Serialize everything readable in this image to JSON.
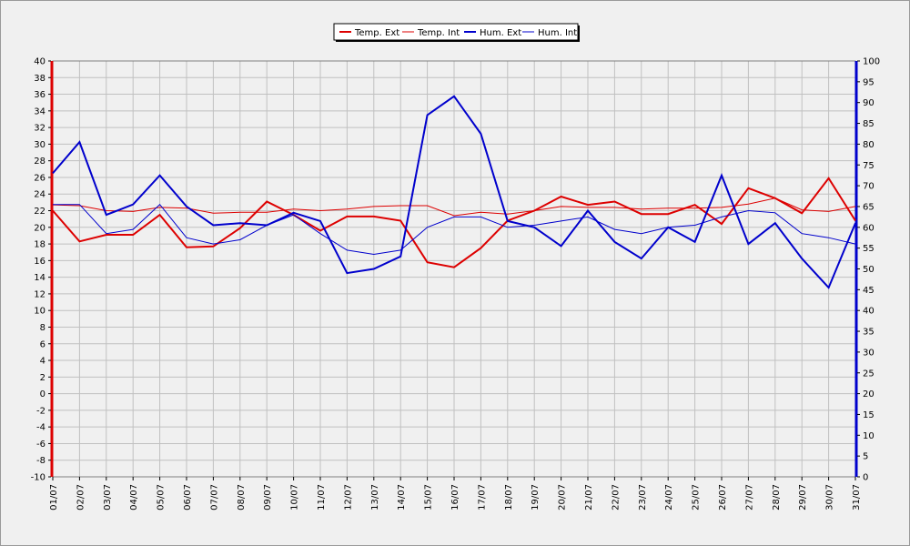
{
  "chart_data": {
    "type": "line",
    "title": "",
    "categories": [
      "01/07",
      "02/07",
      "03/07",
      "04/07",
      "05/07",
      "06/07",
      "07/07",
      "08/07",
      "09/07",
      "10/07",
      "11/07",
      "12/07",
      "13/07",
      "14/07",
      "15/07",
      "16/07",
      "17/07",
      "18/07",
      "19/07",
      "20/07",
      "21/07",
      "22/07",
      "23/07",
      "24/07",
      "25/07",
      "26/07",
      "27/07",
      "28/07",
      "29/07",
      "30/07",
      "31/07"
    ],
    "left_axis": {
      "ylim": [
        -10,
        40
      ],
      "ticks": [
        -10,
        -8,
        -6,
        -4,
        -2,
        0,
        2,
        4,
        6,
        8,
        10,
        12,
        14,
        16,
        18,
        20,
        22,
        24,
        26,
        28,
        30,
        32,
        34,
        36,
        38,
        40
      ],
      "color": "#dd0000"
    },
    "right_axis": {
      "ylim": [
        0,
        100
      ],
      "ticks": [
        0,
        5,
        10,
        15,
        20,
        25,
        30,
        35,
        40,
        45,
        50,
        55,
        60,
        65,
        70,
        75,
        80,
        85,
        90,
        95,
        100
      ],
      "color": "#0000cc"
    },
    "grid": true,
    "legend_position": "top-center",
    "series": [
      {
        "name": "Temp. Ext",
        "axis": "left",
        "color": "#dd0000",
        "width": 2,
        "values": [
          22.0,
          18.3,
          19.1,
          19.1,
          21.5,
          17.6,
          17.7,
          19.9,
          23.1,
          21.5,
          19.6,
          21.3,
          21.3,
          20.8,
          15.8,
          15.2,
          17.5,
          20.8,
          22.0,
          23.7,
          22.7,
          23.1,
          21.6,
          21.6,
          22.7,
          20.4,
          24.7,
          23.5,
          21.7,
          25.9,
          20.8
        ]
      },
      {
        "name": "Temp. Int",
        "axis": "left",
        "color": "#dd0000",
        "width": 1,
        "values": [
          22.7,
          22.6,
          22.0,
          21.9,
          22.4,
          22.3,
          21.7,
          21.8,
          21.8,
          22.2,
          22.0,
          22.2,
          22.5,
          22.6,
          22.6,
          21.4,
          21.8,
          21.6,
          22.0,
          22.5,
          22.4,
          22.4,
          22.2,
          22.3,
          22.3,
          22.4,
          22.8,
          23.5,
          22.1,
          21.9,
          22.5
        ]
      },
      {
        "name": "Hum. Ext",
        "axis": "right",
        "color": "#0000cc",
        "width": 2,
        "values": [
          73,
          80.5,
          63,
          65.5,
          72.5,
          65,
          60.5,
          61,
          60.5,
          63.5,
          61.5,
          49,
          50,
          53,
          87,
          91.5,
          82.5,
          61.5,
          60,
          55.5,
          64,
          56.5,
          52.5,
          60,
          56.5,
          72.5,
          56,
          61,
          52.5,
          45.5,
          61
        ]
      },
      {
        "name": "Hum. Int",
        "axis": "right",
        "color": "#0000cc",
        "width": 1,
        "values": [
          65.5,
          65.5,
          58.5,
          59.5,
          65.5,
          57.5,
          56,
          57,
          60.5,
          63,
          58.5,
          54.5,
          53.5,
          54.5,
          60,
          62.5,
          62.5,
          60,
          60.5,
          61.5,
          62.5,
          59.5,
          58.5,
          60,
          60.5,
          62.5,
          64,
          63.5,
          58.5,
          57.5,
          56
        ]
      }
    ]
  }
}
